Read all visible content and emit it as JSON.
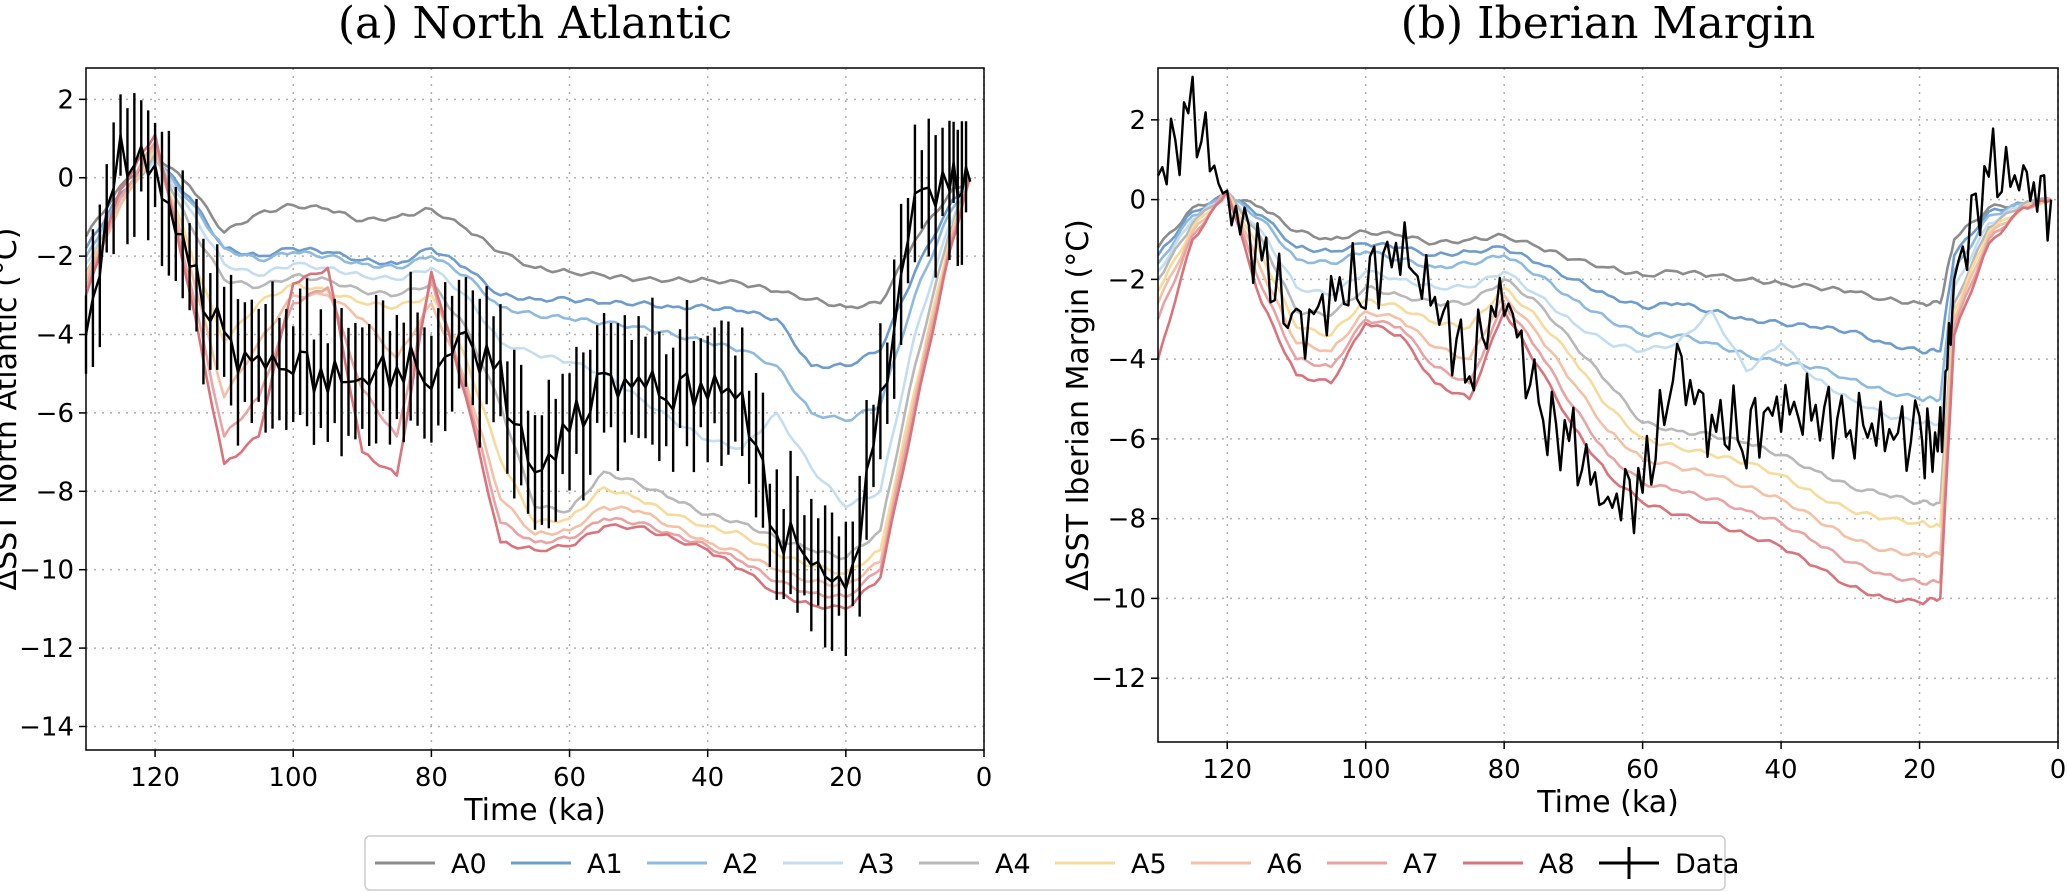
{
  "legend": [
    "A0",
    "A1",
    "A2",
    "A3",
    "A4",
    "A5",
    "A6",
    "A7",
    "A8",
    "Data"
  ],
  "series_colors": [
    "#8c8c8c",
    "#6e9ccc",
    "#8fbadf",
    "#c4def0",
    "#b8b8b8",
    "#f6dc9c",
    "#f4c0a6",
    "#e9a3a3",
    "#d9737c"
  ],
  "data_color": "#000000",
  "chart_data": [
    {
      "type": "line",
      "title": "(a) North Atlantic",
      "xlabel": "Time (ka)",
      "ylabel": "ΔSST North Atlantic (°C)",
      "xlim": [
        130,
        0
      ],
      "ylim": [
        -14.6,
        2.8
      ],
      "xticks": [
        120,
        100,
        80,
        60,
        40,
        20,
        0
      ],
      "yticks": [
        2,
        0,
        -2,
        -4,
        -6,
        -8,
        -10,
        -12,
        -14
      ],
      "grid": true,
      "x": [
        130,
        125,
        120,
        115,
        110,
        105,
        100,
        95,
        90,
        85,
        80,
        75,
        70,
        65,
        60,
        55,
        50,
        45,
        40,
        35,
        30,
        25,
        20,
        15,
        10,
        5,
        2
      ],
      "series": [
        {
          "name": "A0",
          "values": [
            -1.5,
            -0.2,
            0.6,
            -0.2,
            -1.4,
            -0.9,
            -0.7,
            -0.8,
            -1.1,
            -1.0,
            -0.8,
            -1.3,
            -1.9,
            -2.3,
            -2.4,
            -2.5,
            -2.6,
            -2.6,
            -2.6,
            -2.7,
            -2.9,
            -3.1,
            -3.3,
            -3.2,
            -1.6,
            -0.4,
            0.0
          ]
        },
        {
          "name": "A1",
          "values": [
            -1.8,
            -0.4,
            0.5,
            -0.5,
            -1.8,
            -2.0,
            -1.8,
            -1.9,
            -2.1,
            -2.2,
            -1.8,
            -2.3,
            -3.0,
            -3.1,
            -3.1,
            -3.2,
            -3.2,
            -3.3,
            -3.3,
            -3.4,
            -3.6,
            -4.8,
            -4.8,
            -4.4,
            -2.4,
            -0.7,
            0.0
          ]
        },
        {
          "name": "A2",
          "values": [
            -2.0,
            -0.5,
            0.5,
            -0.6,
            -1.8,
            -2.1,
            -1.9,
            -2.0,
            -2.2,
            -2.3,
            -2.0,
            -2.5,
            -3.3,
            -3.5,
            -3.6,
            -3.7,
            -3.8,
            -4.0,
            -4.2,
            -4.4,
            -4.8,
            -6.0,
            -6.2,
            -5.8,
            -3.0,
            -0.9,
            0.0
          ]
        },
        {
          "name": "A3",
          "values": [
            -2.2,
            -0.6,
            0.5,
            -0.8,
            -2.2,
            -2.5,
            -2.2,
            -2.3,
            -2.5,
            -2.6,
            -2.3,
            -3.0,
            -4.2,
            -4.5,
            -4.7,
            -5.0,
            -5.6,
            -6.2,
            -6.7,
            -6.9,
            -6.0,
            -7.4,
            -8.4,
            -8.0,
            -4.0,
            -1.2,
            0.0
          ]
        },
        {
          "name": "A4",
          "values": [
            -2.4,
            -0.7,
            0.6,
            -1.2,
            -2.6,
            -2.8,
            -2.5,
            -2.6,
            -2.9,
            -3.0,
            -2.7,
            -3.8,
            -5.8,
            -8.4,
            -8.5,
            -7.5,
            -7.8,
            -8.2,
            -8.6,
            -8.8,
            -9.2,
            -9.5,
            -9.7,
            -9.0,
            -4.8,
            -1.4,
            0.0
          ]
        },
        {
          "name": "A5",
          "values": [
            -2.5,
            -0.7,
            0.7,
            -1.8,
            -4.2,
            -3.2,
            -2.7,
            -2.9,
            -3.2,
            -3.3,
            -3.0,
            -4.6,
            -7.2,
            -8.8,
            -8.7,
            -7.9,
            -8.2,
            -8.6,
            -8.9,
            -9.1,
            -9.6,
            -9.9,
            -10.1,
            -9.5,
            -5.4,
            -1.6,
            0.0
          ]
        },
        {
          "name": "A6",
          "values": [
            -2.6,
            -0.7,
            0.8,
            -2.2,
            -5.6,
            -4.2,
            -3.0,
            -3.0,
            -3.6,
            -4.6,
            -3.2,
            -5.2,
            -8.2,
            -9.1,
            -9.0,
            -8.4,
            -8.5,
            -8.9,
            -9.3,
            -9.6,
            -10.0,
            -10.3,
            -10.4,
            -9.8,
            -5.6,
            -1.7,
            0.0
          ]
        },
        {
          "name": "A7",
          "values": [
            -2.8,
            -0.5,
            0.9,
            -2.6,
            -6.6,
            -5.6,
            -3.2,
            -2.8,
            -5.4,
            -6.6,
            -2.6,
            -5.4,
            -8.8,
            -9.3,
            -9.2,
            -8.7,
            -8.8,
            -9.1,
            -9.4,
            -9.8,
            -10.3,
            -10.6,
            -10.7,
            -10.0,
            -5.8,
            -1.8,
            0.0
          ]
        },
        {
          "name": "A8",
          "values": [
            -3.0,
            -0.3,
            1.1,
            -2.9,
            -7.3,
            -6.6,
            -2.7,
            -2.3,
            -7.0,
            -7.6,
            -2.4,
            -5.6,
            -9.3,
            -9.5,
            -9.4,
            -8.9,
            -8.9,
            -9.2,
            -9.5,
            -10.0,
            -10.6,
            -10.9,
            -11.0,
            -10.2,
            -6.0,
            -1.9,
            0.0
          ]
        },
        {
          "name": "Data",
          "values": [
            -4.0,
            0.6,
            0.2,
            -2.2,
            -4.3,
            -4.8,
            -4.6,
            -5.1,
            -5.2,
            -4.7,
            -5.0,
            -4.1,
            -5.2,
            -7.6,
            -6.4,
            -5.3,
            -5.2,
            -5.4,
            -5.3,
            -5.6,
            -9.0,
            -9.6,
            -10.8,
            -6.0,
            -0.4,
            -0.2,
            -0.1
          ]
        }
      ]
    },
    {
      "type": "line",
      "title": "(b) Iberian Margin",
      "xlabel": "Time (ka)",
      "ylabel": "ΔSST Iberian Margin (°C)",
      "xlim": [
        130,
        0
      ],
      "ylim": [
        -13.6,
        3.3
      ],
      "xticks": [
        120,
        100,
        80,
        60,
        40,
        20,
        0
      ],
      "yticks": [
        2,
        0,
        -2,
        -4,
        -6,
        -8,
        -10,
        -12
      ],
      "grid": true,
      "x": [
        130,
        125,
        120,
        115,
        110,
        105,
        100,
        95,
        90,
        85,
        80,
        75,
        70,
        65,
        60,
        55,
        50,
        45,
        40,
        35,
        30,
        25,
        20,
        17,
        15,
        10,
        5,
        1
      ],
      "series": [
        {
          "name": "A0",
          "values": [
            -1.2,
            -0.2,
            0.1,
            -0.2,
            -0.8,
            -1.0,
            -0.8,
            -0.9,
            -1.1,
            -1.0,
            -0.9,
            -1.2,
            -1.5,
            -1.7,
            -1.9,
            -1.8,
            -1.9,
            -2.0,
            -2.1,
            -2.2,
            -2.3,
            -2.5,
            -2.6,
            -2.6,
            -1.0,
            -0.2,
            -0.1,
            0.0
          ]
        },
        {
          "name": "A1",
          "values": [
            -1.4,
            -0.3,
            0.1,
            -0.4,
            -1.2,
            -1.3,
            -1.1,
            -1.2,
            -1.4,
            -1.3,
            -1.2,
            -1.6,
            -2.0,
            -2.4,
            -2.7,
            -2.6,
            -2.8,
            -3.0,
            -3.1,
            -3.2,
            -3.3,
            -3.6,
            -3.8,
            -3.8,
            -1.4,
            -0.3,
            -0.1,
            0.0
          ]
        },
        {
          "name": "A2",
          "values": [
            -1.6,
            -0.4,
            0.1,
            -0.5,
            -1.5,
            -1.6,
            -1.3,
            -1.5,
            -1.7,
            -1.6,
            -1.4,
            -1.9,
            -2.5,
            -3.0,
            -3.4,
            -3.4,
            -3.6,
            -3.9,
            -4.1,
            -4.2,
            -4.5,
            -4.8,
            -5.0,
            -5.0,
            -1.8,
            -0.4,
            -0.1,
            0.0
          ]
        },
        {
          "name": "A3",
          "values": [
            -1.8,
            -0.5,
            0.1,
            -0.8,
            -2.2,
            -2.4,
            -1.8,
            -2.0,
            -2.2,
            -2.2,
            -1.8,
            -2.4,
            -3.1,
            -3.6,
            -3.8,
            -3.6,
            -2.8,
            -4.3,
            -3.6,
            -4.5,
            -5.0,
            -5.4,
            -5.6,
            -5.6,
            -2.2,
            -0.6,
            -0.1,
            0.0
          ]
        },
        {
          "name": "A4",
          "values": [
            -2.0,
            -0.6,
            0.2,
            -1.0,
            -2.8,
            -2.9,
            -2.2,
            -2.4,
            -2.6,
            -2.6,
            -2.0,
            -2.6,
            -3.6,
            -4.6,
            -5.6,
            -5.8,
            -5.9,
            -6.1,
            -6.4,
            -6.8,
            -7.2,
            -7.4,
            -7.6,
            -7.6,
            -2.6,
            -0.7,
            -0.1,
            0.0
          ]
        },
        {
          "name": "A5",
          "values": [
            -2.3,
            -0.7,
            0.2,
            -1.4,
            -3.2,
            -3.4,
            -2.5,
            -2.7,
            -3.1,
            -3.2,
            -2.2,
            -3.0,
            -4.0,
            -5.2,
            -6.0,
            -6.2,
            -6.4,
            -6.6,
            -6.9,
            -7.4,
            -7.8,
            -8.0,
            -8.1,
            -8.2,
            -2.8,
            -0.8,
            -0.2,
            0.0
          ]
        },
        {
          "name": "A6",
          "values": [
            -2.6,
            -0.8,
            0.2,
            -1.8,
            -3.6,
            -3.8,
            -2.8,
            -3.0,
            -3.7,
            -4.0,
            -2.4,
            -3.4,
            -4.6,
            -5.8,
            -6.5,
            -6.7,
            -6.9,
            -7.2,
            -7.5,
            -8.0,
            -8.5,
            -8.8,
            -8.9,
            -8.9,
            -3.0,
            -0.9,
            -0.2,
            0.0
          ]
        },
        {
          "name": "A7",
          "values": [
            -3.0,
            -0.9,
            0.2,
            -2.2,
            -4.0,
            -4.2,
            -3.0,
            -3.2,
            -4.2,
            -4.6,
            -2.6,
            -3.8,
            -5.2,
            -6.4,
            -7.1,
            -7.3,
            -7.5,
            -7.8,
            -8.1,
            -8.6,
            -9.1,
            -9.4,
            -9.6,
            -9.6,
            -3.2,
            -1.0,
            -0.2,
            0.0
          ]
        },
        {
          "name": "A8",
          "values": [
            -4.0,
            -1.0,
            0.2,
            -2.6,
            -4.4,
            -4.6,
            -3.1,
            -3.4,
            -4.6,
            -5.0,
            -2.8,
            -4.2,
            -5.7,
            -6.9,
            -7.6,
            -7.9,
            -8.1,
            -8.4,
            -8.7,
            -9.2,
            -9.7,
            -10.0,
            -10.1,
            -10.0,
            -3.4,
            -1.1,
            -0.2,
            0.0
          ]
        },
        {
          "name": "Data",
          "values": [
            0.6,
            2.2,
            0.0,
            -1.4,
            -3.4,
            -2.4,
            -2.0,
            -1.2,
            -2.6,
            -4.2,
            -2.2,
            -5.4,
            -6.2,
            -7.6,
            -7.2,
            -4.2,
            -5.6,
            -5.8,
            -5.2,
            -5.4,
            -5.6,
            -5.8,
            -6.0,
            -6.2,
            -2.0,
            0.8,
            0.4,
            0.0
          ]
        }
      ]
    }
  ]
}
